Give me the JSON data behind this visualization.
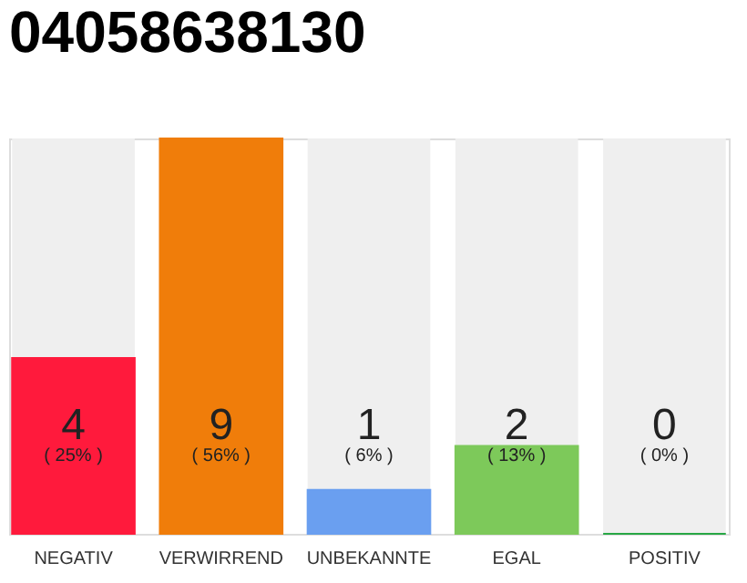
{
  "chart_data": {
    "type": "bar",
    "title": "04058638130",
    "categories": [
      "NEGATIV",
      "VERWIRREND",
      "UNBEKANNTE",
      "EGAL",
      "POSITIV"
    ],
    "values": [
      4,
      9,
      1,
      2,
      0
    ],
    "colors": [
      "#ff1a3c",
      "#f07d0a",
      "#6a9ff0",
      "#7dc95a",
      "#28a745"
    ],
    "value_labels": [
      "4\n( 25% )",
      "9\n( 56% )",
      "1\n( 6% )",
      "2\n( 13% )",
      "0\n( 0% )"
    ],
    "tick_labels": "x"
  }
}
